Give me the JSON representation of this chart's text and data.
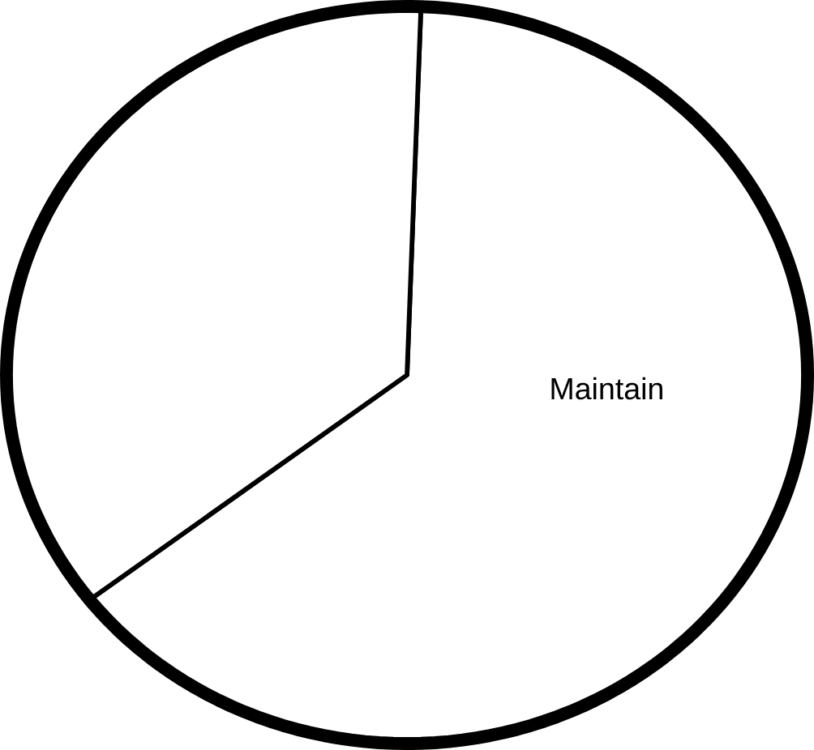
{
  "chart_data": {
    "type": "pie",
    "categories": [
      "Maintain",
      null
    ],
    "values": [
      64,
      36
    ],
    "colors": [
      "#ffffff",
      "#ffffff"
    ]
  }
}
